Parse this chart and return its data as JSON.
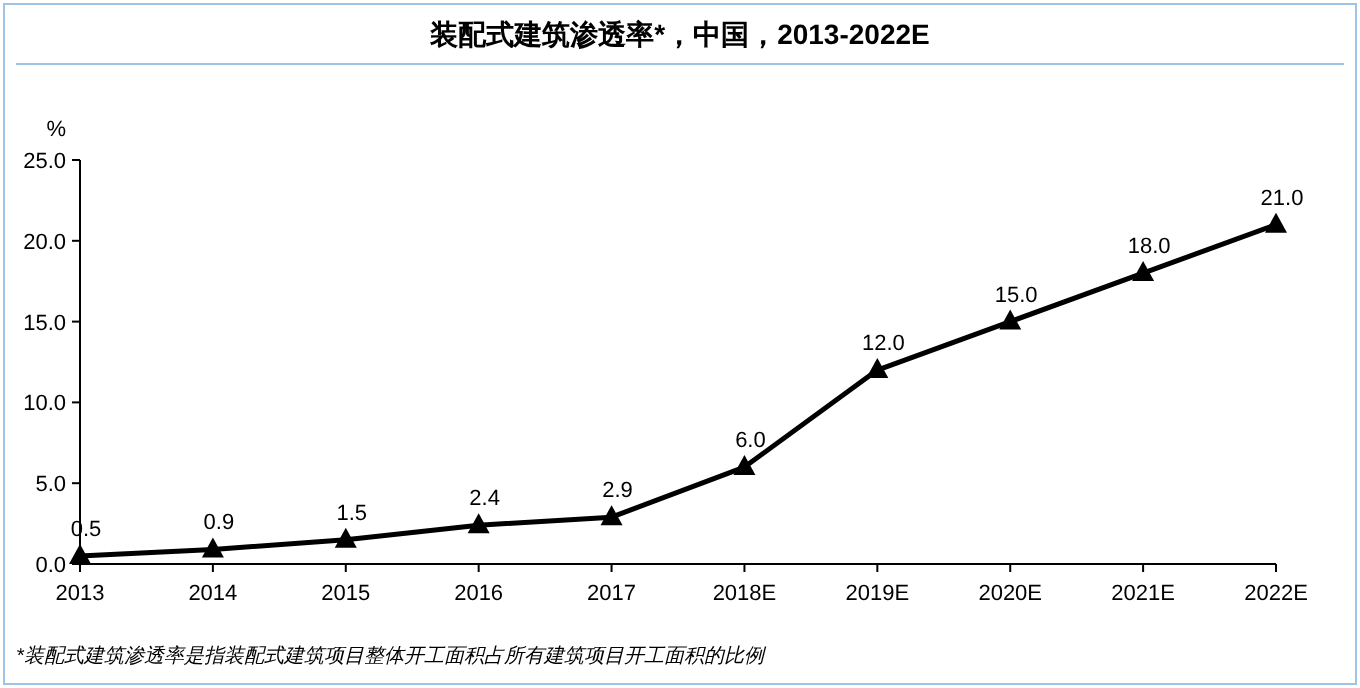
{
  "chart_data": {
    "type": "line",
    "title": "装配式建筑渗透率*，中国，2013-2022E",
    "ylabel": "%",
    "categories": [
      "2013",
      "2014",
      "2015",
      "2016",
      "2017",
      "2018E",
      "2019E",
      "2020E",
      "2021E",
      "2022E"
    ],
    "values": [
      0.5,
      0.9,
      1.5,
      2.4,
      2.9,
      6.0,
      12.0,
      15.0,
      18.0,
      21.0
    ],
    "value_labels": [
      "0.5",
      "0.9",
      "1.5",
      "2.4",
      "2.9",
      "6.0",
      "12.0",
      "15.0",
      "18.0",
      "21.0"
    ],
    "color": "#000000",
    "marker": "triangle",
    "line_style": "solid",
    "ylim": [
      0,
      25
    ],
    "yticks": [
      {
        "value": 0,
        "label": "0.0"
      },
      {
        "value": 5,
        "label": "5.0"
      },
      {
        "value": 10,
        "label": "10.0"
      },
      {
        "value": 15,
        "label": "15.0"
      },
      {
        "value": 20,
        "label": "20.0"
      },
      {
        "value": 25,
        "label": "25.0"
      }
    ],
    "annotations": [
      "*装配式建筑渗透率是指装配式建筑项目整体开工面积占所有建筑项目开工面积的比例"
    ]
  }
}
